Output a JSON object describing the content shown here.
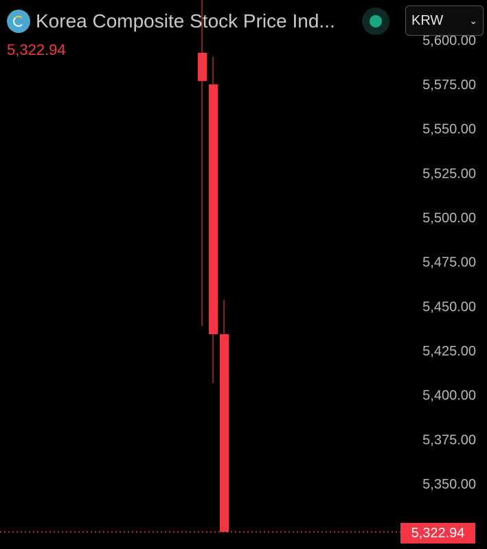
{
  "header": {
    "title": "Korea Composite Stock Price Ind...",
    "price": "5,322.94",
    "currency": "KRW",
    "logo_icon": "kospi-logo-icon",
    "status_icon": "market-status-dot"
  },
  "colors": {
    "down": "#f23645",
    "status": "#1aa583",
    "axis_text": "#b8b8b8"
  },
  "chart_data": {
    "type": "candlestick",
    "ylim": [
      5312,
      5600
    ],
    "y_ticks": [
      "5,600.00",
      "5,575.00",
      "5,550.00",
      "5,525.00",
      "5,500.00",
      "5,475.00",
      "5,450.00",
      "5,425.00",
      "5,400.00",
      "5,375.00",
      "5,350.00"
    ],
    "y_tick_values": [
      5600,
      5575,
      5550,
      5525,
      5500,
      5475,
      5450,
      5425,
      5400,
      5375,
      5350
    ],
    "candles": [
      {
        "open": 5592.8,
        "high": 5625,
        "low": 5439,
        "close": 5576.9
      },
      {
        "open": 5575,
        "high": 5590.5,
        "low": 5406.9,
        "close": 5434.3
      },
      {
        "open": 5434.3,
        "high": 5453.6,
        "low": 5322.94,
        "close": 5322.94
      }
    ],
    "last_price": 5322.94,
    "last_price_label": "5,322.94"
  }
}
